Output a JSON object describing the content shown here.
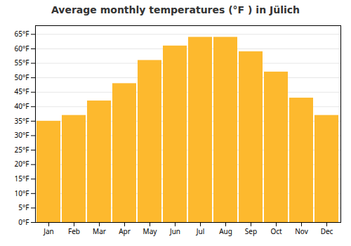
{
  "chart_data": {
    "type": "bar",
    "title": "Average monthly temperatures (°F ) in Jülich",
    "categories": [
      "Jan",
      "Feb",
      "Mar",
      "Apr",
      "May",
      "Jun",
      "Jul",
      "Aug",
      "Sep",
      "Oct",
      "Nov",
      "Dec"
    ],
    "values": [
      35,
      37,
      42,
      48,
      56,
      61,
      64,
      64,
      59,
      52,
      43,
      37
    ],
    "color": "#FDB92E",
    "ylim": [
      0,
      68
    ],
    "yticks": [
      {
        "value": 0,
        "label": "0°F"
      },
      {
        "value": 5,
        "label": "5°F"
      },
      {
        "value": 10,
        "label": "10°F"
      },
      {
        "value": 15,
        "label": "15°F"
      },
      {
        "value": 20,
        "label": "20°F"
      },
      {
        "value": 25,
        "label": "25°F"
      },
      {
        "value": 30,
        "label": "30°F"
      },
      {
        "value": 35,
        "label": "35°F"
      },
      {
        "value": 40,
        "label": "40°F"
      },
      {
        "value": 45,
        "label": "45°F"
      },
      {
        "value": 50,
        "label": "50°F"
      },
      {
        "value": 55,
        "label": "55°F"
      },
      {
        "value": 60,
        "label": "60°F"
      },
      {
        "value": 65,
        "label": "65°F"
      }
    ],
    "grid": true
  }
}
